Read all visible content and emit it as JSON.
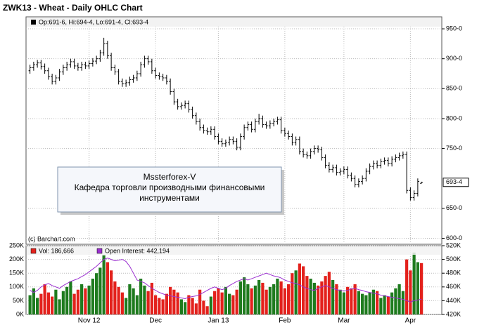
{
  "chart_data": [
    {
      "type": "ohlc",
      "title": "ZWK13 - Wheat - Daily OHLC Chart",
      "legend_text": "Op:691-6, Hi:694-4, Lo:691-4, Cl:693-4",
      "credit": "(c) Barchart.com",
      "color": "#000000",
      "ylim": [
        590,
        970
      ],
      "yticks": [
        {
          "value": 950,
          "label": "950-0"
        },
        {
          "value": 900,
          "label": "900-0"
        },
        {
          "value": 850,
          "label": "850-0"
        },
        {
          "value": 800,
          "label": "800-0"
        },
        {
          "value": 750,
          "label": "750-0"
        },
        {
          "value": 650,
          "label": "650-0"
        },
        {
          "value": 600,
          "label": "600-0"
        }
      ],
      "last_price": {
        "value": 693.5,
        "label": "693-4"
      },
      "annotation": [
        "Mssterforex-V",
        "Кафедра торговли производными финансовыми",
        "инструментами"
      ],
      "open": [
        880,
        885,
        890,
        893,
        887,
        880,
        870,
        862,
        868,
        878,
        885,
        890,
        895,
        888,
        885,
        890,
        888,
        892,
        896,
        900,
        910,
        925,
        905,
        885,
        878,
        862,
        858,
        860,
        865,
        868,
        875,
        890,
        900,
        895,
        880,
        872,
        870,
        868,
        862,
        845,
        828,
        820,
        822,
        825,
        815,
        805,
        795,
        785,
        780,
        778,
        782,
        770,
        762,
        758,
        760,
        765,
        762,
        752,
        770,
        785,
        790,
        782,
        795,
        800,
        790,
        788,
        792,
        795,
        798,
        780,
        775,
        770,
        760,
        765,
        745,
        740,
        738,
        745,
        750,
        748,
        735,
        722,
        715,
        718,
        710,
        712,
        715,
        705,
        700,
        690,
        695,
        700,
        712,
        720,
        725,
        722,
        728,
        730,
        725,
        732,
        735,
        738,
        740,
        680,
        668,
        675,
        691.75
      ],
      "high": [
        890,
        895,
        898,
        898,
        892,
        885,
        875,
        873,
        883,
        890,
        895,
        900,
        900,
        893,
        895,
        895,
        897,
        901,
        905,
        915,
        935,
        930,
        910,
        890,
        883,
        867,
        865,
        870,
        873,
        880,
        895,
        905,
        905,
        900,
        885,
        877,
        875,
        873,
        867,
        850,
        833,
        827,
        830,
        830,
        820,
        810,
        800,
        790,
        785,
        787,
        787,
        775,
        767,
        765,
        770,
        770,
        767,
        775,
        790,
        795,
        795,
        800,
        808,
        805,
        795,
        797,
        800,
        803,
        803,
        785,
        780,
        775,
        770,
        770,
        750,
        745,
        750,
        755,
        755,
        753,
        740,
        727,
        723,
        723,
        717,
        720,
        720,
        710,
        705,
        700,
        705,
        717,
        725,
        730,
        730,
        733,
        735,
        735,
        737,
        740,
        743,
        745,
        745,
        685,
        680,
        700,
        694.5
      ],
      "low": [
        875,
        880,
        885,
        882,
        875,
        865,
        857,
        857,
        863,
        873,
        880,
        885,
        883,
        880,
        880,
        883,
        883,
        887,
        891,
        895,
        905,
        900,
        880,
        873,
        857,
        853,
        853,
        855,
        860,
        863,
        870,
        885,
        890,
        875,
        867,
        865,
        863,
        857,
        840,
        823,
        815,
        815,
        817,
        810,
        800,
        790,
        780,
        775,
        773,
        773,
        765,
        757,
        753,
        753,
        755,
        757,
        747,
        747,
        765,
        780,
        777,
        777,
        790,
        785,
        783,
        783,
        787,
        790,
        775,
        770,
        765,
        755,
        755,
        740,
        735,
        733,
        733,
        740,
        743,
        730,
        717,
        710,
        710,
        705,
        705,
        707,
        700,
        695,
        685,
        685,
        690,
        695,
        707,
        715,
        717,
        717,
        723,
        720,
        720,
        727,
        730,
        733,
        675,
        663,
        663,
        670,
        691.5
      ],
      "close": [
        885,
        890,
        893,
        887,
        880,
        870,
        862,
        868,
        878,
        885,
        890,
        895,
        888,
        885,
        890,
        888,
        892,
        896,
        900,
        910,
        925,
        905,
        885,
        878,
        862,
        858,
        860,
        865,
        868,
        875,
        890,
        900,
        895,
        880,
        872,
        870,
        868,
        862,
        845,
        828,
        820,
        822,
        825,
        815,
        805,
        795,
        785,
        780,
        778,
        782,
        770,
        762,
        758,
        760,
        765,
        762,
        752,
        770,
        785,
        790,
        782,
        795,
        800,
        790,
        788,
        792,
        795,
        798,
        780,
        775,
        770,
        760,
        765,
        745,
        740,
        738,
        745,
        750,
        748,
        735,
        722,
        715,
        718,
        710,
        712,
        715,
        705,
        700,
        690,
        695,
        700,
        712,
        720,
        725,
        722,
        728,
        730,
        725,
        732,
        735,
        738,
        740,
        680,
        668,
        675,
        695,
        693.5
      ]
    },
    {
      "type": "bar",
      "categories": [
        null,
        null,
        null,
        null,
        null,
        null,
        null,
        null,
        null,
        null,
        null,
        null,
        null,
        null,
        null,
        null,
        "Nov 12",
        null,
        null,
        null,
        null,
        null,
        null,
        null,
        null,
        null,
        null,
        null,
        null,
        null,
        null,
        null,
        null,
        null,
        "Dec",
        null,
        null,
        null,
        null,
        null,
        null,
        null,
        null,
        null,
        null,
        null,
        null,
        null,
        null,
        null,
        null,
        "Jan 13",
        null,
        null,
        null,
        null,
        null,
        null,
        null,
        null,
        null,
        null,
        null,
        null,
        null,
        null,
        null,
        null,
        null,
        "Feb",
        null,
        null,
        null,
        null,
        null,
        null,
        null,
        null,
        null,
        null,
        null,
        null,
        null,
        null,
        null,
        "Mar",
        null,
        null,
        null,
        null,
        null,
        null,
        null,
        null,
        null,
        null,
        null,
        null,
        null,
        null,
        null,
        null,
        null,
        "Apr",
        null,
        null,
        null
      ],
      "ylim": [
        0,
        250000
      ],
      "yticks": [
        {
          "value": 250000,
          "label": "250K"
        },
        {
          "value": 200000,
          "label": "200K"
        },
        {
          "value": 150000,
          "label": "150K"
        },
        {
          "value": 100000,
          "label": "100K"
        },
        {
          "value": 50000,
          "label": "50K"
        },
        {
          "value": 0,
          "label": "0K"
        }
      ],
      "y2lim": [
        420000,
        520000
      ],
      "y2ticks": [
        {
          "value": 520000,
          "label": "520K"
        },
        {
          "value": 500000,
          "label": "500K"
        },
        {
          "value": 480000,
          "label": "480K"
        },
        {
          "value": 460000,
          "label": "460K"
        },
        {
          "value": 440000,
          "label": "440K"
        },
        {
          "value": 420000,
          "label": "420K"
        }
      ],
      "series": [
        {
          "name": "Vol: 186,666",
          "color": "#e3211c",
          "up_color": "#1e7b1e",
          "values": [
            70000,
            95000,
            60000,
            75000,
            110000,
            80000,
            65000,
            90000,
            55000,
            85000,
            100000,
            120000,
            75000,
            90000,
            110000,
            95000,
            105000,
            130000,
            150000,
            170000,
            215000,
            190000,
            160000,
            120000,
            100000,
            80000,
            60000,
            110000,
            95000,
            70000,
            130000,
            105000,
            85000,
            115000,
            70000,
            60000,
            55000,
            75000,
            100000,
            90000,
            80000,
            55000,
            45000,
            70000,
            60000,
            40000,
            90000,
            50000,
            30000,
            65000,
            85000,
            95000,
            80000,
            100000,
            75000,
            70000,
            90000,
            120000,
            135000,
            110000,
            95000,
            105000,
            125000,
            115000,
            90000,
            100000,
            110000,
            130000,
            120000,
            95000,
            110000,
            150000,
            160000,
            185000,
            175000,
            140000,
            130000,
            115000,
            105000,
            120000,
            140000,
            155000,
            125000,
            110000,
            90000,
            80000,
            100000,
            95000,
            110000,
            85000,
            75000,
            70000,
            80000,
            90000,
            85000,
            60000,
            70000,
            65000,
            80000,
            95000,
            110000,
            85000,
            200000,
            160000,
            225000,
            190000,
            186666
          ]
        },
        {
          "name": "Open Interest: 442,194",
          "color": "#9b30d0",
          "axis": "y2",
          "values": [
            455000,
            452000,
            455000,
            460000,
            463000,
            465000,
            462000,
            460000,
            458000,
            462000,
            465000,
            468000,
            470000,
            472000,
            475000,
            478000,
            482000,
            486000,
            490000,
            495000,
            500000,
            502000,
            500000,
            498000,
            499000,
            500000,
            497000,
            490000,
            480000,
            470000,
            468000,
            466000,
            462000,
            458000,
            455000,
            452000,
            450000,
            448000,
            447000,
            446000,
            445000,
            444000,
            443000,
            445000,
            446000,
            447000,
            449000,
            452000,
            455000,
            458000,
            460000,
            458000,
            456000,
            458000,
            462000,
            465000,
            468000,
            470000,
            472000,
            470000,
            472000,
            474000,
            476000,
            478000,
            480000,
            478000,
            476000,
            475000,
            473000,
            470000,
            468000,
            466000,
            465000,
            463000,
            460000,
            458000,
            456000,
            455000,
            458000,
            460000,
            462000,
            460000,
            458000,
            456000,
            455000,
            454000,
            455000,
            457000,
            458000,
            456000,
            455000,
            453000,
            452000,
            451000,
            450000,
            448000,
            447000,
            446000,
            445000,
            444000,
            443000,
            442000,
            440000,
            438000,
            440000,
            441000,
            442194
          ]
        }
      ]
    }
  ]
}
